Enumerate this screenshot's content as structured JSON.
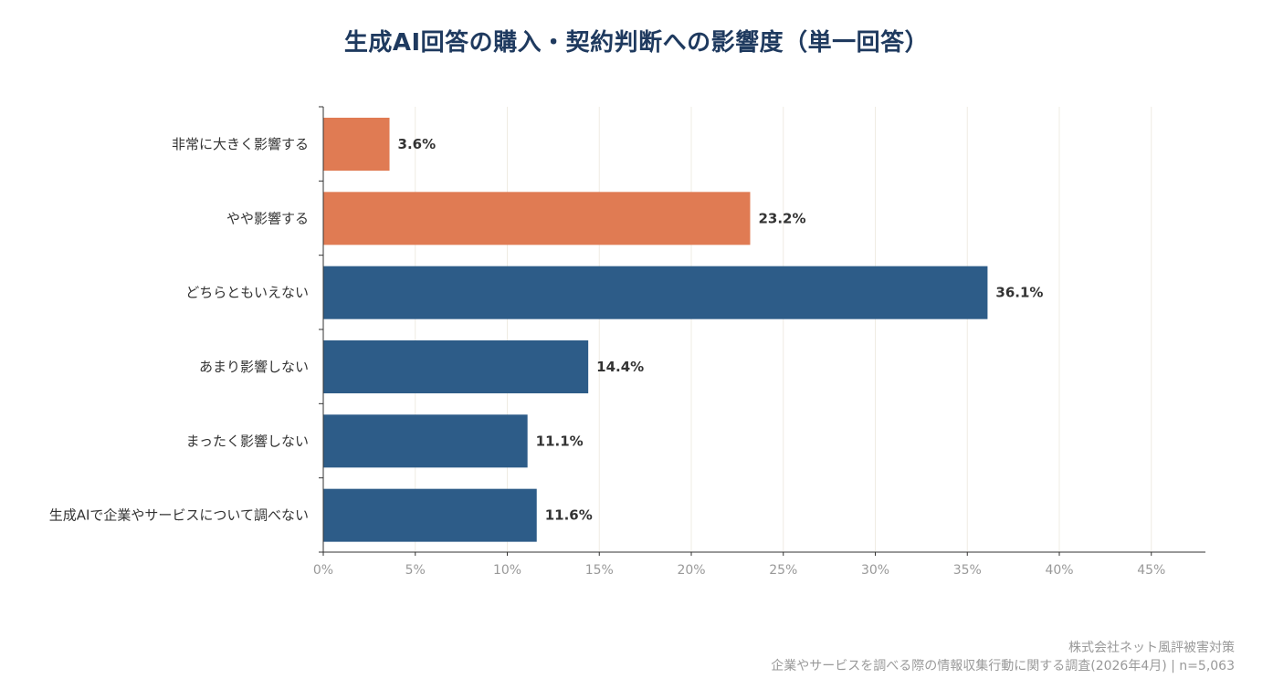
{
  "chart_data": {
    "type": "bar",
    "orientation": "horizontal",
    "title": "生成AI回答の購入・契約判断への影響度（単一回答）",
    "categories": [
      "非常に大きく影響する",
      "やや影響する",
      "どちらともいえない",
      "あまり影響しない",
      "まったく影響しない",
      "生成AIで企業やサービスについて調べない"
    ],
    "values": [
      3.6,
      23.2,
      36.1,
      14.4,
      11.1,
      11.6
    ],
    "value_labels": [
      "3.6%",
      "23.2%",
      "36.1%",
      "14.4%",
      "11.1%",
      "11.6%"
    ],
    "bar_colors": [
      "#e07b53",
      "#e07b53",
      "#2d5c88",
      "#2d5c88",
      "#2d5c88",
      "#2d5c88"
    ],
    "xlim": [
      0,
      48
    ],
    "x_ticks": [
      0,
      5,
      10,
      15,
      20,
      25,
      30,
      35,
      40,
      45
    ],
    "x_tick_labels": [
      "0%",
      "5%",
      "10%",
      "15%",
      "20%",
      "25%",
      "30%",
      "35%",
      "40%",
      "45%"
    ],
    "grid": "vertical",
    "legend": "none"
  },
  "footer": {
    "line1": "株式会社ネット風評被害対策",
    "line2": "企業やサービスを調べる際の情報収集行動に関する調査(2026年4月) | n=5,063"
  },
  "colors": {
    "title": "#1f3a5f",
    "positive": "#e07b53",
    "neutral_negative": "#2d5c88",
    "grid": "#efece3",
    "axis": "#333333",
    "muted_text": "#999999"
  }
}
